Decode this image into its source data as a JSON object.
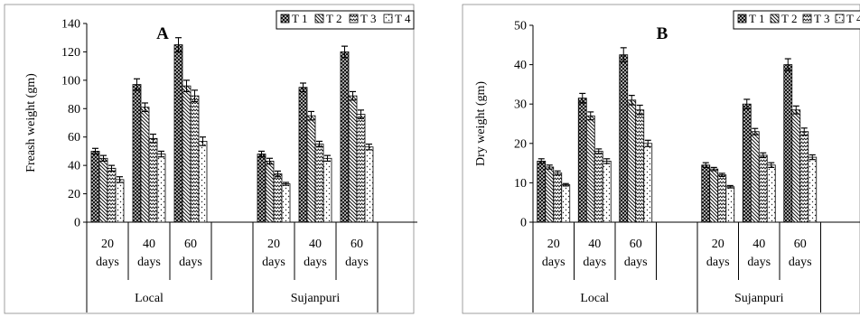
{
  "chart_data": [
    {
      "type": "bar",
      "title": "A",
      "ylabel": "Freash weight (gm)",
      "ylim": [
        0,
        140
      ],
      "yticks": [
        0,
        20,
        40,
        60,
        80,
        100,
        120,
        140
      ],
      "groups": [
        "Local",
        "Sujanpuri"
      ],
      "categories": [
        "20 days",
        "40 days",
        "60 days"
      ],
      "category_lines": [
        [
          "20",
          "days"
        ],
        [
          "40",
          "days"
        ],
        [
          "60",
          "days"
        ]
      ],
      "legend_position": "top-right",
      "series": [
        {
          "name": "T 1",
          "values": [
            [
              50,
              97,
              125
            ],
            [
              48,
              95,
              120
            ]
          ],
          "errors": [
            [
              2,
              4,
              5
            ],
            [
              2,
              3,
              4
            ]
          ]
        },
        {
          "name": "T 2",
          "values": [
            [
              45,
              81,
              96
            ],
            [
              43,
              75,
              89
            ]
          ],
          "errors": [
            [
              2,
              3,
              4
            ],
            [
              2,
              3,
              3
            ]
          ]
        },
        {
          "name": "T 3",
          "values": [
            [
              38,
              59,
              89
            ],
            [
              34,
              55,
              76
            ]
          ],
          "errors": [
            [
              2,
              3,
              4
            ],
            [
              2,
              2,
              3
            ]
          ]
        },
        {
          "name": "T 4",
          "values": [
            [
              30,
              48,
              57
            ],
            [
              27,
              45,
              53
            ]
          ],
          "errors": [
            [
              2,
              2,
              3
            ],
            [
              1,
              2,
              2
            ]
          ]
        }
      ]
    },
    {
      "type": "bar",
      "title": "B",
      "ylabel": "Dry weight (gm)",
      "ylim": [
        0,
        50
      ],
      "yticks": [
        0,
        10,
        20,
        30,
        40,
        50
      ],
      "groups": [
        "Local",
        "Sujanpuri"
      ],
      "categories": [
        "20 days",
        "40 days",
        "60 days"
      ],
      "category_lines": [
        [
          "20",
          "days"
        ],
        [
          "40",
          "days"
        ],
        [
          "60",
          "days"
        ]
      ],
      "legend_position": "top-right",
      "series": [
        {
          "name": "T 1",
          "values": [
            [
              15.5,
              31.5,
              42.5
            ],
            [
              14.5,
              30,
              40
            ]
          ],
          "errors": [
            [
              0.6,
              1.2,
              1.8
            ],
            [
              0.6,
              1.2,
              1.5
            ]
          ]
        },
        {
          "name": "T 2",
          "values": [
            [
              14,
              27,
              31
            ],
            [
              13.5,
              23,
              28.5
            ]
          ],
          "errors": [
            [
              0.5,
              1.0,
              1.2
            ],
            [
              0.4,
              0.8,
              1.0
            ]
          ]
        },
        {
          "name": "T 3",
          "values": [
            [
              12.5,
              18,
              28.5
            ],
            [
              12,
              17,
              23
            ]
          ],
          "errors": [
            [
              0.5,
              0.6,
              1.2
            ],
            [
              0.4,
              0.6,
              0.9
            ]
          ]
        },
        {
          "name": "T 4",
          "values": [
            [
              9.5,
              15.5,
              20
            ],
            [
              9,
              14.5,
              16.5
            ]
          ],
          "errors": [
            [
              0.3,
              0.6,
              0.8
            ],
            [
              0.3,
              0.6,
              0.6
            ]
          ]
        }
      ]
    }
  ]
}
